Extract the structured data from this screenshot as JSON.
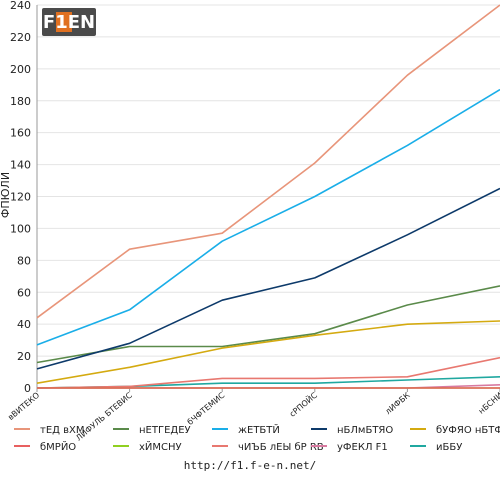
{
  "chart_data": {
    "type": "line",
    "ylabel": "ФПЮЛИ",
    "xlabel": "",
    "ylim": [
      0,
      240
    ],
    "yticks": [
      0,
      20,
      40,
      60,
      80,
      100,
      120,
      140,
      160,
      180,
      200,
      220,
      240
    ],
    "grid": "horizontal",
    "legend_position": "bottom",
    "categories": [
      "вВИТЕКО",
      "ЛИФУЛЬ БТЕВИС",
      "бЧФТЕМИС",
      "сРПОЙС",
      "лИФБК",
      "нБСНИ"
    ],
    "series": [
      {
        "name": "тЕД вХМ",
        "color": "#e8957a",
        "values": [
          44,
          87,
          97,
          141,
          196,
          240
        ]
      },
      {
        "name": "нЕТГЕДЕУ",
        "color": "#5a8a4a",
        "values": [
          16,
          26,
          26,
          34,
          52,
          64
        ]
      },
      {
        "name": "жЕТБТЙ",
        "color": "#1aaee8",
        "values": [
          27,
          49,
          92,
          120,
          152,
          187
        ]
      },
      {
        "name": "нБЛмБТЯО",
        "color": "#0d3a6a",
        "values": [
          12,
          28,
          55,
          69,
          96,
          125
        ]
      },
      {
        "name": "бУФЯО нБТФЙО",
        "color": "#d4aa10",
        "values": [
          3,
          13,
          25,
          33,
          40,
          42
        ]
      },
      {
        "name": "бМРЙО",
        "color": "#e86060",
        "values": [
          0,
          0,
          0,
          0,
          0,
          0
        ]
      },
      {
        "name": "хЙМСНУ",
        "color": "#90d020",
        "values": [
          0,
          0,
          0,
          0,
          0,
          0
        ]
      },
      {
        "name": "чИЪБ лЕЫ бР RB",
        "color": "#e87870",
        "values": [
          0,
          1,
          6,
          6,
          7,
          19
        ]
      },
      {
        "name": "уФЕКЛ F1",
        "color": "#d87aa0",
        "values": [
          0,
          0,
          0,
          0,
          0,
          2
        ]
      },
      {
        "name": "иББУ",
        "color": "#20a8a0",
        "values": [
          0,
          1,
          3,
          3,
          5,
          7
        ]
      }
    ]
  },
  "logo": {
    "text": "F1EN"
  },
  "footer": {
    "url": "http://f1.f-e-n.net/"
  }
}
